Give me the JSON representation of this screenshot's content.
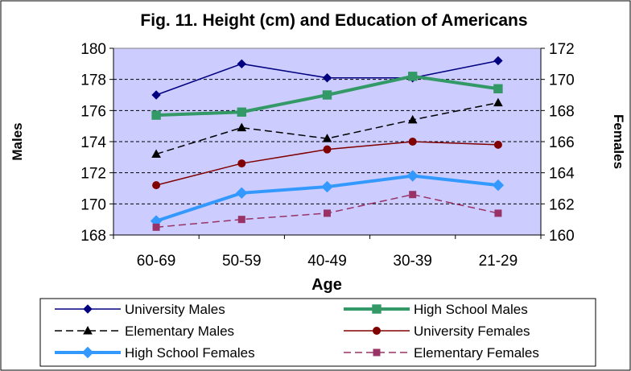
{
  "chart_data": {
    "type": "line",
    "title": "Fig. 11. Height (cm) and Education of Americans",
    "xlabel": "Age",
    "ylabel": "Males",
    "y2label": "Females",
    "categories": [
      "60-69",
      "50-59",
      "40-49",
      "30-39",
      "21-29"
    ],
    "ylim": [
      168,
      180
    ],
    "y2lim": [
      160,
      172
    ],
    "yticks": [
      "168",
      "170",
      "172",
      "174",
      "176",
      "178",
      "180"
    ],
    "y2ticks": [
      "160",
      "162",
      "164",
      "166",
      "168",
      "170",
      "172"
    ],
    "grid": "horizontal dashed",
    "plot_background": "#CCCCFF",
    "legend_position": "bottom",
    "series": [
      {
        "name": "University Males",
        "axis": "left",
        "values": [
          177.0,
          179.0,
          178.1,
          178.1,
          179.2
        ],
        "color": "#000080",
        "marker": "diamond",
        "dash": "solid",
        "width": "thin"
      },
      {
        "name": "High School Males",
        "axis": "left",
        "values": [
          175.7,
          175.9,
          177.0,
          178.2,
          177.4
        ],
        "color": "#339966",
        "marker": "square",
        "dash": "solid",
        "width": "thick"
      },
      {
        "name": "Elementary Males",
        "axis": "left",
        "values": [
          173.2,
          174.9,
          174.2,
          175.4,
          176.5
        ],
        "color": "#000000",
        "marker": "triangle",
        "dash": "dashed",
        "width": "thin"
      },
      {
        "name": "University Females",
        "axis": "right",
        "values": [
          163.2,
          164.6,
          165.5,
          166.0,
          165.8
        ],
        "color": "#800000",
        "marker": "circle",
        "dash": "solid",
        "width": "thin"
      },
      {
        "name": "High School Females",
        "axis": "right",
        "values": [
          160.9,
          162.7,
          163.1,
          163.8,
          163.2
        ],
        "color": "#3399FF",
        "marker": "diamond",
        "dash": "solid",
        "width": "thick"
      },
      {
        "name": "Elementary Females",
        "axis": "right",
        "values": [
          160.5,
          161.0,
          161.4,
          162.6,
          161.4
        ],
        "color": "#993366",
        "marker": "square",
        "dash": "dashed",
        "width": "thin"
      }
    ]
  }
}
